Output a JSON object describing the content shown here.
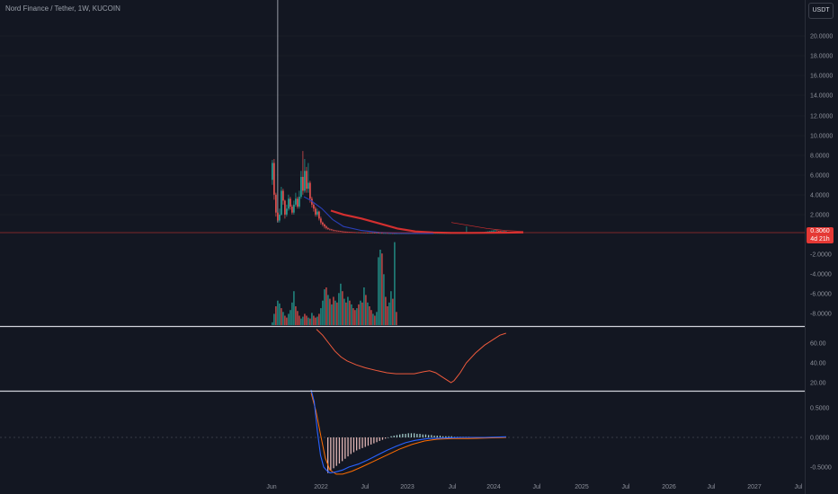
{
  "header": {
    "title": "Nord Finance / Tether, 1W, KUCOIN",
    "currency_button": "USDT"
  },
  "price_tag": {
    "value": "0.3060",
    "countdown": "4d 21h",
    "color": "#e53935"
  },
  "colors": {
    "up": "#26a69a",
    "down": "#ef5350",
    "ma_red": "#d32f2f",
    "ma_blue": "#2a3fb8",
    "rsi": "#ef5a3c",
    "macd": "#2962ff",
    "signal": "#ff6d00",
    "bg": "#131722"
  },
  "chart_data": [
    {
      "type": "bar",
      "name": "price",
      "x_tick_labels": [
        "Jun",
        "2022",
        "Jul",
        "2023",
        "Jul",
        "2024",
        "Jul",
        "2025",
        "Jul",
        "2026",
        "Jul",
        "2027",
        "Jul"
      ],
      "y_tick_labels": [
        "20.0000",
        "18.0000",
        "16.0000",
        "14.0000",
        "12.0000",
        "10.0000",
        "8.0000",
        "6.0000",
        "4.0000",
        "2.0000"
      ],
      "ylim": [
        0,
        21
      ],
      "spike_high": 26,
      "candles": [
        [
          5.5,
          7.2,
          5.0,
          7.5
        ],
        [
          7.2,
          4.0,
          3.5,
          7.6
        ],
        [
          4.0,
          2.2,
          1.8,
          4.2
        ],
        [
          2.2,
          1.4,
          1.2,
          26.0
        ],
        [
          1.4,
          2.0,
          1.2,
          2.6
        ],
        [
          2.0,
          4.4,
          1.9,
          4.8
        ],
        [
          4.4,
          3.4,
          3.0,
          4.6
        ],
        [
          3.4,
          2.0,
          1.6,
          3.5
        ],
        [
          2.0,
          2.6,
          1.8,
          3.0
        ],
        [
          2.6,
          3.6,
          2.4,
          4.0
        ],
        [
          3.6,
          2.8,
          2.5,
          3.8
        ],
        [
          2.8,
          2.2,
          2.0,
          3.0
        ],
        [
          2.2,
          3.0,
          2.0,
          3.4
        ],
        [
          3.0,
          3.6,
          2.8,
          4.2
        ],
        [
          3.6,
          2.8,
          2.6,
          3.8
        ],
        [
          2.8,
          3.8,
          2.6,
          4.4
        ],
        [
          3.8,
          5.8,
          3.6,
          6.4
        ],
        [
          5.8,
          4.4,
          4.0,
          8.4
        ],
        [
          4.4,
          6.4,
          4.2,
          7.6
        ],
        [
          6.4,
          4.6,
          4.2,
          6.8
        ],
        [
          4.6,
          5.2,
          4.2,
          7.2
        ],
        [
          5.2,
          3.6,
          3.2,
          5.4
        ],
        [
          3.6,
          3.0,
          2.7,
          3.8
        ],
        [
          3.0,
          2.6,
          2.3,
          3.2
        ],
        [
          2.6,
          2.0,
          1.8,
          2.8
        ],
        [
          2.0,
          2.3,
          1.8,
          2.6
        ],
        [
          2.3,
          1.6,
          1.4,
          2.4
        ],
        [
          1.6,
          1.2,
          1.0,
          1.8
        ],
        [
          1.2,
          1.0,
          0.8,
          1.3
        ],
        [
          1.0,
          0.8,
          0.6,
          1.1
        ],
        [
          0.8,
          0.65,
          0.5,
          0.9
        ],
        [
          0.65,
          0.55,
          0.45,
          0.7
        ],
        [
          0.55,
          0.5,
          0.4,
          0.6
        ],
        [
          0.5,
          0.45,
          0.35,
          0.55
        ],
        [
          0.45,
          0.4,
          0.3,
          0.5
        ],
        [
          0.4,
          0.38,
          0.3,
          0.45
        ],
        [
          0.38,
          0.35,
          0.28,
          0.42
        ],
        [
          0.35,
          0.33,
          0.28,
          0.4
        ],
        [
          0.33,
          0.3,
          0.26,
          0.36
        ],
        [
          0.3,
          0.28,
          0.24,
          0.34
        ],
        [
          0.28,
          0.27,
          0.22,
          0.32
        ],
        [
          0.27,
          0.25,
          0.2,
          0.3
        ],
        [
          0.25,
          0.24,
          0.2,
          0.28
        ],
        [
          0.24,
          0.23,
          0.2,
          0.27
        ],
        [
          0.23,
          0.22,
          0.19,
          0.26
        ],
        [
          0.22,
          0.21,
          0.18,
          0.25
        ],
        [
          0.21,
          0.2,
          0.17,
          0.24
        ],
        [
          0.2,
          0.2,
          0.16,
          0.23
        ],
        [
          0.2,
          0.19,
          0.16,
          0.23
        ],
        [
          0.19,
          0.18,
          0.15,
          0.22
        ],
        [
          0.18,
          0.18,
          0.15,
          0.21
        ],
        [
          0.18,
          0.17,
          0.14,
          0.2
        ],
        [
          0.17,
          0.17,
          0.14,
          0.2
        ],
        [
          0.17,
          0.16,
          0.13,
          0.19
        ],
        [
          0.16,
          0.16,
          0.13,
          0.19
        ],
        [
          0.16,
          0.15,
          0.12,
          0.18
        ],
        [
          0.15,
          0.15,
          0.12,
          0.17
        ],
        [
          0.15,
          0.14,
          0.12,
          0.17
        ],
        [
          0.14,
          0.14,
          0.11,
          0.16
        ],
        [
          0.14,
          0.13,
          0.11,
          0.16
        ],
        [
          0.13,
          0.13,
          0.1,
          0.15
        ],
        [
          0.13,
          0.12,
          0.1,
          0.15
        ],
        [
          0.12,
          0.12,
          0.1,
          0.14
        ],
        [
          0.12,
          0.12,
          0.1,
          0.14
        ],
        [
          0.12,
          0.11,
          0.09,
          0.13
        ],
        [
          0.11,
          0.11,
          0.09,
          0.13
        ],
        [
          0.11,
          0.11,
          0.09,
          0.13
        ],
        [
          0.11,
          0.1,
          0.08,
          0.12
        ],
        [
          0.1,
          0.1,
          0.08,
          0.12
        ],
        [
          0.1,
          0.1,
          0.08,
          0.12
        ],
        [
          0.1,
          0.1,
          0.08,
          0.12
        ],
        [
          0.1,
          0.1,
          0.08,
          0.12
        ],
        [
          0.1,
          0.1,
          0.08,
          0.12
        ],
        [
          0.1,
          0.1,
          0.08,
          0.12
        ],
        [
          0.1,
          0.1,
          0.08,
          0.12
        ],
        [
          0.1,
          0.1,
          0.08,
          0.12
        ],
        [
          0.1,
          0.1,
          0.08,
          0.12
        ],
        [
          0.1,
          0.1,
          0.08,
          0.12
        ],
        [
          0.1,
          0.1,
          0.08,
          0.12
        ],
        [
          0.1,
          0.1,
          0.08,
          0.12
        ],
        [
          0.1,
          0.1,
          0.08,
          0.12
        ],
        [
          0.1,
          0.1,
          0.08,
          0.12
        ],
        [
          0.1,
          0.1,
          0.08,
          0.12
        ],
        [
          0.1,
          0.1,
          0.08,
          0.12
        ],
        [
          0.1,
          0.1,
          0.08,
          0.12
        ],
        [
          0.1,
          0.1,
          0.08,
          0.12
        ],
        [
          0.1,
          0.1,
          0.08,
          0.12
        ],
        [
          0.1,
          0.12,
          0.08,
          0.14
        ],
        [
          0.12,
          0.12,
          0.1,
          0.14
        ],
        [
          0.12,
          0.12,
          0.1,
          0.14
        ],
        [
          0.12,
          0.12,
          0.1,
          0.14
        ],
        [
          0.12,
          0.12,
          0.1,
          0.14
        ],
        [
          0.12,
          0.12,
          0.1,
          0.14
        ],
        [
          0.12,
          0.12,
          0.1,
          0.14
        ],
        [
          0.12,
          0.12,
          0.1,
          0.14
        ],
        [
          0.12,
          0.12,
          0.1,
          0.14
        ],
        [
          0.12,
          0.12,
          0.1,
          0.14
        ],
        [
          0.12,
          0.12,
          0.1,
          0.14
        ],
        [
          0.12,
          0.12,
          0.1,
          0.14
        ],
        [
          0.12,
          0.12,
          0.1,
          0.14
        ],
        [
          0.12,
          0.13,
          0.1,
          0.15
        ],
        [
          0.13,
          0.13,
          0.11,
          0.15
        ],
        [
          0.13,
          0.13,
          0.11,
          0.15
        ],
        [
          0.13,
          0.13,
          0.11,
          0.15
        ],
        [
          0.13,
          0.13,
          0.11,
          0.15
        ],
        [
          0.13,
          0.14,
          0.11,
          0.16
        ],
        [
          0.14,
          0.14,
          0.12,
          0.16
        ],
        [
          0.14,
          0.14,
          0.12,
          0.16
        ],
        [
          0.14,
          0.15,
          0.12,
          0.8
        ],
        [
          0.15,
          0.15,
          0.12,
          0.18
        ],
        [
          0.15,
          0.16,
          0.13,
          0.19
        ],
        [
          0.16,
          0.16,
          0.13,
          0.19
        ],
        [
          0.16,
          0.17,
          0.14,
          0.2
        ],
        [
          0.17,
          0.18,
          0.14,
          0.21
        ],
        [
          0.18,
          0.19,
          0.15,
          0.22
        ],
        [
          0.19,
          0.2,
          0.16,
          0.23
        ],
        [
          0.2,
          0.21,
          0.17,
          0.24
        ],
        [
          0.21,
          0.22,
          0.18,
          0.25
        ],
        [
          0.22,
          0.24,
          0.19,
          0.27
        ],
        [
          0.24,
          0.26,
          0.2,
          0.3
        ],
        [
          0.26,
          0.28,
          0.22,
          0.34
        ],
        [
          0.28,
          0.3,
          0.24,
          0.36
        ],
        [
          0.3,
          0.32,
          0.26,
          0.4
        ],
        [
          0.32,
          0.35,
          0.28,
          0.45
        ],
        [
          0.35,
          0.38,
          0.3,
          0.5
        ],
        [
          0.38,
          0.34,
          0.3,
          0.48
        ],
        [
          0.34,
          0.32,
          0.28,
          0.4
        ],
        [
          0.32,
          0.3,
          0.26,
          0.38
        ],
        [
          0.3,
          0.31,
          0.27,
          0.36
        ],
        [
          0.31,
          0.3,
          0.27,
          0.36
        ],
        [
          0.3,
          0.306,
          0.27,
          0.36
        ]
      ],
      "ma_red": [
        [
          33,
          2.4
        ],
        [
          40,
          2.0
        ],
        [
          50,
          1.6
        ],
        [
          60,
          1.1
        ],
        [
          70,
          0.6
        ],
        [
          80,
          0.3
        ],
        [
          90,
          0.2
        ],
        [
          100,
          0.15
        ],
        [
          110,
          0.15
        ],
        [
          120,
          0.16
        ],
        [
          130,
          0.18
        ],
        [
          140,
          0.2
        ]
      ],
      "ma_blue": [
        [
          18,
          3.8
        ],
        [
          22,
          3.4
        ],
        [
          28,
          2.6
        ],
        [
          34,
          1.5
        ],
        [
          40,
          0.8
        ],
        [
          50,
          0.4
        ],
        [
          60,
          0.2
        ],
        [
          70,
          0.12
        ],
        [
          90,
          0.1
        ]
      ],
      "ma_thin": [
        [
          100,
          1.2
        ],
        [
          110,
          0.9
        ],
        [
          120,
          0.6
        ],
        [
          130,
          0.4
        ],
        [
          140,
          0.3
        ]
      ]
    },
    {
      "type": "bar",
      "name": "volume",
      "y_tick_labels": [
        "-2.0000",
        "-4.0000",
        "-6.0000",
        "-8.0000"
      ],
      "values": [
        0.3,
        1.2,
        2.0,
        2.6,
        2.3,
        1.8,
        1.4,
        1.0,
        0.8,
        1.2,
        1.6,
        2.4,
        3.6,
        2.0,
        1.5,
        1.0,
        0.7,
        0.9,
        1.2,
        1.0,
        0.8,
        0.7,
        1.3,
        1.0,
        0.8,
        0.9,
        1.2,
        1.8,
        2.6,
        3.8,
        4.0,
        3.2,
        2.8,
        2.2,
        3.0,
        2.6,
        2.4,
        3.4,
        4.4,
        3.6,
        2.8,
        2.4,
        3.0,
        2.6,
        2.2,
        1.8,
        1.6,
        1.8,
        2.2,
        2.6,
        2.4,
        4.0,
        3.2,
        2.4,
        2.0,
        1.6,
        1.2,
        1.0,
        1.4,
        7.2,
        8.0,
        7.6,
        5.4,
        3.0,
        2.0,
        2.4,
        3.6,
        2.8,
        8.8,
        1.4
      ],
      "up": [
        true,
        true,
        false,
        true,
        true,
        false,
        true,
        false,
        false,
        true,
        true,
        true,
        true,
        false,
        false,
        false,
        true,
        true,
        false,
        false,
        true,
        false,
        true,
        false,
        false,
        true,
        false,
        true,
        true,
        true,
        false,
        true,
        false,
        true,
        false,
        true,
        false,
        true,
        true,
        false,
        true,
        false,
        true,
        false,
        true,
        false,
        false,
        true,
        false,
        true,
        false,
        true,
        false,
        true,
        false,
        false,
        true,
        false,
        true,
        true,
        true,
        false,
        true,
        false,
        false,
        true,
        true,
        false,
        true,
        false
      ]
    },
    {
      "type": "line",
      "name": "rsi",
      "y_tick_labels": [
        "60.00",
        "40.00",
        "20.00"
      ],
      "ylim": [
        15,
        80
      ],
      "values": [
        [
          0,
          74
        ],
        [
          4,
          68
        ],
        [
          8,
          60
        ],
        [
          12,
          52
        ],
        [
          16,
          46
        ],
        [
          20,
          42
        ],
        [
          26,
          38
        ],
        [
          32,
          35
        ],
        [
          40,
          32
        ],
        [
          46,
          30
        ],
        [
          52,
          29
        ],
        [
          58,
          29
        ],
        [
          64,
          29
        ],
        [
          70,
          31
        ],
        [
          74,
          32
        ],
        [
          78,
          30
        ],
        [
          82,
          26
        ],
        [
          86,
          22
        ],
        [
          88,
          20
        ],
        [
          90,
          22
        ],
        [
          94,
          30
        ],
        [
          98,
          40
        ],
        [
          104,
          50
        ],
        [
          110,
          58
        ],
        [
          116,
          64
        ],
        [
          120,
          68
        ],
        [
          124,
          70
        ]
      ]
    },
    {
      "type": "line",
      "name": "macd",
      "y_tick_labels": [
        "0.5000",
        "0.0000",
        "-0.5000"
      ],
      "ylim": [
        -0.65,
        0.85
      ],
      "macd": [
        [
          0,
          0.8
        ],
        [
          2,
          0.6
        ],
        [
          4,
          0.1
        ],
        [
          6,
          -0.3
        ],
        [
          8,
          -0.5
        ],
        [
          10,
          -0.56
        ],
        [
          12,
          -0.6
        ],
        [
          16,
          -0.58
        ],
        [
          20,
          -0.55
        ],
        [
          24,
          -0.5
        ],
        [
          30,
          -0.45
        ],
        [
          36,
          -0.38
        ],
        [
          42,
          -0.3
        ],
        [
          48,
          -0.22
        ],
        [
          54,
          -0.15
        ],
        [
          60,
          -0.09
        ],
        [
          66,
          -0.05
        ],
        [
          74,
          -0.02
        ],
        [
          84,
          -0.01
        ],
        [
          96,
          0.0
        ],
        [
          110,
          0.0
        ],
        [
          124,
          0.01
        ]
      ],
      "signal": [
        [
          0,
          0.75
        ],
        [
          3,
          0.45
        ],
        [
          6,
          0.05
        ],
        [
          9,
          -0.35
        ],
        [
          12,
          -0.55
        ],
        [
          16,
          -0.62
        ],
        [
          20,
          -0.62
        ],
        [
          26,
          -0.57
        ],
        [
          32,
          -0.5
        ],
        [
          40,
          -0.4
        ],
        [
          48,
          -0.3
        ],
        [
          56,
          -0.2
        ],
        [
          64,
          -0.12
        ],
        [
          72,
          -0.06
        ],
        [
          80,
          -0.03
        ],
        [
          90,
          -0.02
        ],
        [
          100,
          -0.02
        ],
        [
          110,
          -0.01
        ],
        [
          124,
          0.0
        ]
      ],
      "histogram": [
        -0.6,
        -0.55,
        -0.52,
        -0.48,
        -0.44,
        -0.4,
        -0.36,
        -0.32,
        -0.28,
        -0.25,
        -0.22,
        -0.2,
        -0.18,
        -0.16,
        -0.14,
        -0.12,
        -0.1,
        -0.08,
        -0.06,
        -0.04,
        -0.02,
        0.0,
        0.02,
        0.03,
        0.04,
        0.05,
        0.06,
        0.06,
        0.07,
        0.07,
        0.07,
        0.06,
        0.06,
        0.05,
        0.05,
        0.04,
        0.04,
        0.03,
        0.03,
        0.03,
        0.02,
        0.02,
        0.02,
        0.02,
        0.01,
        0.01,
        0.01,
        0.01,
        0.01,
        0.01
      ]
    }
  ]
}
